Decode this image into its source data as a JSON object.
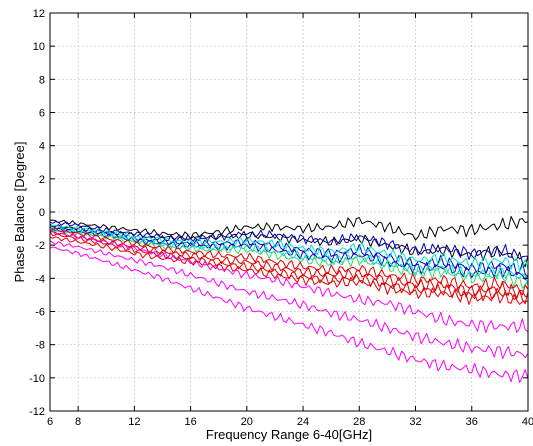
{
  "chart_data": {
    "type": "line",
    "title": "",
    "xlabel": "Frequency Range 6-40[GHz]",
    "ylabel": "Phase Balance [Degree]",
    "xlim": [
      6,
      40
    ],
    "ylim": [
      -12,
      12
    ],
    "xticks": [
      "6",
      "8",
      "12",
      "16",
      "20",
      "24",
      "28",
      "32",
      "36",
      "40"
    ],
    "yticks": [
      "12",
      "10",
      "8",
      "6",
      "4",
      "2",
      "0",
      "-2",
      "-4",
      "-6",
      "-8",
      "-10",
      "-12"
    ],
    "grid": true,
    "legend": false,
    "series": [
      {
        "color": "#000000",
        "x": [
          6,
          8,
          10,
          12,
          14,
          16,
          18,
          20,
          22,
          24,
          26,
          28,
          30,
          32,
          34,
          36,
          38,
          40
        ],
        "values": [
          -0.5,
          -0.7,
          -0.9,
          -1.1,
          -1.3,
          -1.4,
          -1.2,
          -0.9,
          -0.9,
          -1.0,
          -0.9,
          -0.5,
          -0.9,
          -1.5,
          -1.0,
          -1.1,
          -0.8,
          -0.5
        ]
      },
      {
        "color": "#000000",
        "x": [
          6,
          8,
          10,
          12,
          14,
          16,
          18,
          20,
          22,
          24,
          26,
          28,
          30,
          32,
          34,
          36,
          38,
          40
        ],
        "values": [
          -0.8,
          -1.0,
          -1.2,
          -1.4,
          -1.6,
          -1.6,
          -1.5,
          -1.4,
          -1.5,
          -1.7,
          -1.8,
          -1.6,
          -2.0,
          -2.4,
          -2.3,
          -2.6,
          -2.4,
          -3.0
        ]
      },
      {
        "color": "#0000cc",
        "x": [
          6,
          8,
          10,
          12,
          14,
          16,
          18,
          20,
          22,
          24,
          26,
          28,
          30,
          32,
          34,
          36,
          38,
          40
        ],
        "values": [
          -0.6,
          -0.8,
          -1.1,
          -1.3,
          -1.5,
          -1.6,
          -1.5,
          -1.3,
          -1.4,
          -1.6,
          -1.8,
          -1.5,
          -1.9,
          -2.3,
          -2.2,
          -2.5,
          -2.3,
          -2.8
        ]
      },
      {
        "color": "#0000cc",
        "x": [
          6,
          8,
          10,
          12,
          14,
          16,
          18,
          20,
          22,
          24,
          26,
          28,
          30,
          32,
          34,
          36,
          38,
          40
        ],
        "values": [
          -0.9,
          -1.1,
          -1.3,
          -1.6,
          -1.8,
          -1.9,
          -1.9,
          -1.8,
          -2.0,
          -2.3,
          -2.5,
          -2.3,
          -2.7,
          -3.1,
          -3.0,
          -3.4,
          -3.2,
          -3.6
        ]
      },
      {
        "color": "#0000cc",
        "x": [
          6,
          8,
          10,
          12,
          14,
          16,
          18,
          20,
          22,
          24,
          26,
          28,
          30,
          32,
          34,
          36,
          38,
          40
        ],
        "values": [
          -1.0,
          -1.2,
          -1.4,
          -1.7,
          -1.9,
          -2.0,
          -2.1,
          -2.0,
          -2.3,
          -2.6,
          -2.8,
          -2.6,
          -3.0,
          -3.4,
          -3.3,
          -3.7,
          -3.5,
          -3.9
        ]
      },
      {
        "color": "#00e5c8",
        "x": [
          6,
          8,
          10,
          12,
          14,
          16,
          18,
          20,
          22,
          24,
          26,
          28,
          30,
          32,
          34,
          36,
          38,
          40
        ],
        "values": [
          -0.8,
          -1.0,
          -1.2,
          -1.5,
          -1.7,
          -1.8,
          -1.8,
          -1.7,
          -1.9,
          -2.2,
          -2.4,
          -2.1,
          -2.5,
          -2.9,
          -2.8,
          -3.1,
          -2.9,
          -3.3
        ]
      },
      {
        "color": "#00e5c8",
        "x": [
          6,
          8,
          10,
          12,
          14,
          16,
          18,
          20,
          22,
          24,
          26,
          28,
          30,
          32,
          34,
          36,
          38,
          40
        ],
        "values": [
          -1.0,
          -1.2,
          -1.4,
          -1.7,
          -2.0,
          -2.1,
          -2.2,
          -2.1,
          -2.4,
          -2.7,
          -2.9,
          -2.7,
          -3.1,
          -3.5,
          -3.4,
          -3.8,
          -3.6,
          -4.0
        ]
      },
      {
        "color": "#33dd66",
        "x": [
          6,
          8,
          10,
          12,
          14,
          16,
          18,
          20,
          22,
          24,
          26,
          28,
          30,
          32,
          34,
          36,
          38,
          40
        ],
        "values": [
          -1.1,
          -1.3,
          -1.5,
          -1.8,
          -2.1,
          -2.2,
          -2.3,
          -2.3,
          -2.6,
          -2.9,
          -3.1,
          -2.9,
          -3.3,
          -3.7,
          -3.6,
          -4.0,
          -3.8,
          -4.4
        ]
      },
      {
        "color": "#e00000",
        "x": [
          6,
          8,
          10,
          12,
          14,
          16,
          18,
          20,
          22,
          24,
          26,
          28,
          30,
          32,
          34,
          36,
          38,
          40
        ],
        "values": [
          -1.0,
          -1.3,
          -1.6,
          -1.9,
          -2.2,
          -2.4,
          -2.6,
          -2.7,
          -3.0,
          -3.3,
          -3.5,
          -3.4,
          -3.8,
          -4.1,
          -4.1,
          -4.5,
          -4.3,
          -4.8
        ]
      },
      {
        "color": "#e00000",
        "x": [
          6,
          8,
          10,
          12,
          14,
          16,
          18,
          20,
          22,
          24,
          26,
          28,
          30,
          32,
          34,
          36,
          38,
          40
        ],
        "values": [
          -1.2,
          -1.5,
          -1.8,
          -2.1,
          -2.4,
          -2.6,
          -2.9,
          -3.0,
          -3.3,
          -3.6,
          -3.8,
          -3.7,
          -4.1,
          -4.4,
          -4.4,
          -4.8,
          -4.6,
          -5.0
        ]
      },
      {
        "color": "#e00000",
        "x": [
          6,
          8,
          10,
          12,
          14,
          16,
          18,
          20,
          22,
          24,
          26,
          28,
          30,
          32,
          34,
          36,
          38,
          40
        ],
        "values": [
          -1.3,
          -1.6,
          -1.9,
          -2.3,
          -2.6,
          -2.8,
          -3.1,
          -3.3,
          -3.6,
          -3.9,
          -4.1,
          -4.0,
          -4.4,
          -4.7,
          -4.7,
          -5.0,
          -4.9,
          -5.2
        ]
      },
      {
        "color": "#e00000",
        "x": [
          6,
          8,
          10,
          12,
          14,
          16,
          18,
          20,
          22,
          24,
          26,
          28,
          30,
          32,
          34,
          36,
          38,
          40
        ],
        "values": [
          -1.5,
          -1.8,
          -2.1,
          -2.5,
          -2.8,
          -3.0,
          -3.3,
          -3.5,
          -3.8,
          -4.1,
          -4.3,
          -4.2,
          -4.6,
          -4.9,
          -4.9,
          -5.2,
          -5.1,
          -5.5
        ]
      },
      {
        "color": "#ff00ff",
        "x": [
          6,
          8,
          10,
          12,
          14,
          16,
          18,
          20,
          22,
          24,
          26,
          28,
          30,
          32,
          34,
          36,
          38,
          40
        ],
        "values": [
          -1.2,
          -1.5,
          -1.8,
          -2.2,
          -2.6,
          -3.0,
          -3.4,
          -3.8,
          -4.1,
          -4.5,
          -4.9,
          -5.3,
          -5.5,
          -6.0,
          -6.5,
          -6.8,
          -6.9,
          -6.9
        ]
      },
      {
        "color": "#ff00ff",
        "x": [
          6,
          8,
          10,
          12,
          14,
          16,
          18,
          20,
          22,
          24,
          26,
          28,
          30,
          32,
          34,
          36,
          38,
          40
        ],
        "values": [
          -1.8,
          -2.1,
          -2.5,
          -2.9,
          -3.3,
          -3.8,
          -4.3,
          -4.8,
          -5.2,
          -5.6,
          -6.1,
          -6.5,
          -7.0,
          -7.5,
          -7.9,
          -8.2,
          -8.4,
          -8.6
        ]
      },
      {
        "color": "#ff00ff",
        "x": [
          6,
          8,
          10,
          12,
          14,
          16,
          18,
          20,
          22,
          24,
          26,
          28,
          30,
          32,
          34,
          36,
          38,
          40
        ],
        "values": [
          -2.1,
          -2.5,
          -3.0,
          -3.5,
          -4.0,
          -4.6,
          -5.2,
          -5.8,
          -6.3,
          -6.8,
          -7.3,
          -7.9,
          -8.4,
          -8.9,
          -9.3,
          -9.5,
          -9.8,
          -9.9
        ]
      }
    ]
  }
}
